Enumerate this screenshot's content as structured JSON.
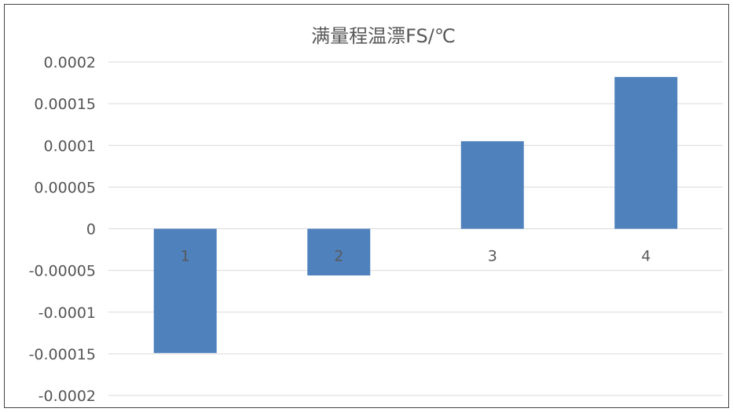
{
  "chart_data": {
    "type": "bar",
    "title": "满量程温漂FS/℃",
    "xlabel": "",
    "ylabel": "",
    "categories": [
      "1",
      "2",
      "3",
      "4"
    ],
    "values": [
      -0.000149,
      -5.6e-05,
      0.000105,
      0.000182
    ],
    "ylim": [
      -0.0002,
      0.0002
    ],
    "yticks": [
      0.0002,
      0.00015,
      0.0001,
      5e-05,
      0,
      -5e-05,
      -0.0001,
      -0.00015,
      -0.0002
    ],
    "ytick_labels": [
      "0.0002",
      "0.00015",
      "0.0001",
      "0.00005",
      "0",
      "-0.00005",
      "-0.0001",
      "-0.00015",
      "-0.0002"
    ],
    "grid": true,
    "legend": "none",
    "colors": {
      "bar": "#4f81bd",
      "grid": "#d9d9d9",
      "text": "#595959"
    }
  }
}
